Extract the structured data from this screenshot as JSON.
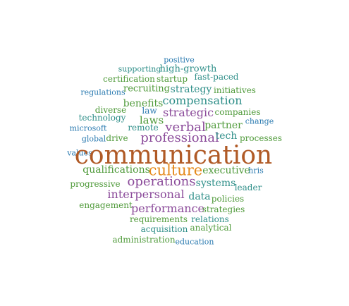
{
  "colors": {
    "blue": "#2a7ab0",
    "green": "#4f9a3a",
    "purple": "#8b4b9a",
    "orange": "#e58a1c",
    "brown": "#b05a26",
    "teal": "#2f8f89"
  },
  "words": [
    {
      "text": "positive",
      "color": "blue"
    },
    {
      "text": "supporting",
      "color": "teal"
    },
    {
      "text": "high-growth",
      "color": "teal"
    },
    {
      "text": "certification",
      "color": "green"
    },
    {
      "text": "startup",
      "color": "green"
    },
    {
      "text": "fast-paced",
      "color": "teal"
    },
    {
      "text": "regulations",
      "color": "blue"
    },
    {
      "text": "recruiting",
      "color": "green"
    },
    {
      "text": "strategy",
      "color": "teal"
    },
    {
      "text": "initiatives",
      "color": "green"
    },
    {
      "text": "benefits",
      "color": "green"
    },
    {
      "text": "compensation",
      "color": "teal"
    },
    {
      "text": "diverse",
      "color": "green"
    },
    {
      "text": "law",
      "color": "blue"
    },
    {
      "text": "strategic",
      "color": "purple"
    },
    {
      "text": "companies",
      "color": "green"
    },
    {
      "text": "technology",
      "color": "teal"
    },
    {
      "text": "laws",
      "color": "green"
    },
    {
      "text": "change",
      "color": "blue"
    },
    {
      "text": "microsoft",
      "color": "blue"
    },
    {
      "text": "remote",
      "color": "teal"
    },
    {
      "text": "verbal",
      "color": "purple"
    },
    {
      "text": "partner",
      "color": "green"
    },
    {
      "text": "global",
      "color": "blue"
    },
    {
      "text": "drive",
      "color": "green"
    },
    {
      "text": "professional",
      "color": "purple"
    },
    {
      "text": "tech",
      "color": "teal"
    },
    {
      "text": "processes",
      "color": "green"
    },
    {
      "text": "values",
      "color": "blue"
    },
    {
      "text": "communication",
      "color": "brown"
    },
    {
      "text": "qualifications",
      "color": "green"
    },
    {
      "text": "culture",
      "color": "orange"
    },
    {
      "text": "executive",
      "color": "green"
    },
    {
      "text": "hris",
      "color": "blue"
    },
    {
      "text": "operations",
      "color": "purple"
    },
    {
      "text": "progressive",
      "color": "green"
    },
    {
      "text": "systems",
      "color": "teal"
    },
    {
      "text": "leader",
      "color": "teal"
    },
    {
      "text": "interpersonal",
      "color": "purple"
    },
    {
      "text": "data",
      "color": "teal"
    },
    {
      "text": "policies",
      "color": "green"
    },
    {
      "text": "engagement",
      "color": "green"
    },
    {
      "text": "performance",
      "color": "purple"
    },
    {
      "text": "strategies",
      "color": "green"
    },
    {
      "text": "requirements",
      "color": "green"
    },
    {
      "text": "relations",
      "color": "teal"
    },
    {
      "text": "acquisition",
      "color": "teal"
    },
    {
      "text": "analytical",
      "color": "green"
    },
    {
      "text": "administration",
      "color": "green"
    },
    {
      "text": "education",
      "color": "blue"
    }
  ]
}
